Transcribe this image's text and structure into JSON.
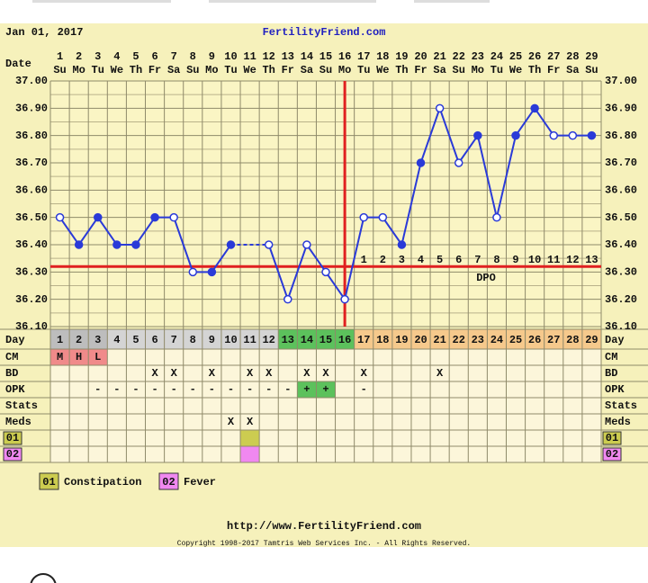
{
  "chart_data": {
    "type": "line",
    "date": "Jan 01, 2017",
    "site": "FertilityFriend.com",
    "date_label": "Date",
    "x": [
      1,
      2,
      3,
      4,
      5,
      6,
      7,
      8,
      9,
      10,
      11,
      12,
      13,
      14,
      15,
      16,
      17,
      18,
      19,
      20,
      21,
      22,
      23,
      24,
      25,
      26,
      27,
      28,
      29
    ],
    "weekdays": [
      "Su",
      "Mo",
      "Tu",
      "We",
      "Th",
      "Fr",
      "Sa",
      "Su",
      "Mo",
      "Tu",
      "We",
      "Th",
      "Fr",
      "Sa",
      "Su",
      "Mo",
      "Tu",
      "We",
      "Th",
      "Fr",
      "Sa",
      "Su",
      "Mo",
      "Tu",
      "We",
      "Th",
      "Fr",
      "Sa",
      "Su"
    ],
    "series": [
      {
        "color": "#2a3ad8",
        "values": [
          36.5,
          36.4,
          36.5,
          36.4,
          36.4,
          36.5,
          36.5,
          36.3,
          36.3,
          36.4,
          null,
          36.4,
          36.2,
          36.4,
          36.3,
          36.2,
          36.5,
          36.5,
          36.4,
          36.7,
          36.9,
          36.7,
          36.8,
          36.5,
          36.8,
          36.9,
          36.8,
          36.8,
          36.8
        ],
        "filled": [
          false,
          true,
          true,
          true,
          true,
          true,
          false,
          false,
          true,
          true,
          null,
          false,
          false,
          false,
          false,
          false,
          false,
          false,
          true,
          true,
          false,
          false,
          true,
          false,
          true,
          true,
          false,
          false,
          true
        ],
        "gap_style": "dashed"
      }
    ],
    "ylim": [
      36.1,
      37.0
    ],
    "yticks": [
      {
        "value": 36.1,
        "label": "36.10"
      },
      {
        "value": 36.2,
        "label": "36.20"
      },
      {
        "value": 36.3,
        "label": "36.30"
      },
      {
        "value": 36.4,
        "label": "36.40"
      },
      {
        "value": 36.5,
        "label": "36.50"
      },
      {
        "value": 36.6,
        "label": "36.60"
      },
      {
        "value": 36.7,
        "label": "36.70"
      },
      {
        "value": 36.8,
        "label": "36.80"
      },
      {
        "value": 36.9,
        "label": "36.90"
      },
      {
        "value": 37.0,
        "label": "37.00"
      }
    ],
    "minor_yticks": [
      36.15,
      36.25,
      36.35,
      36.45,
      36.55,
      36.65,
      36.75,
      36.85,
      36.95
    ],
    "grid": true,
    "coverline": 36.32,
    "coverline_color": "#e02020",
    "ovulation_day": 16,
    "dpo": [
      null,
      null,
      null,
      null,
      null,
      null,
      null,
      null,
      null,
      null,
      null,
      null,
      null,
      null,
      null,
      null,
      1,
      2,
      3,
      4,
      5,
      6,
      7,
      8,
      9,
      10,
      11,
      12,
      13
    ],
    "dpo_label": "DPO",
    "day_label": "Day",
    "phases": [
      {
        "days": [
          1,
          3
        ],
        "color": "#bdbdbd"
      },
      {
        "days": [
          4,
          12
        ],
        "color": "#d4d4d4"
      },
      {
        "days": [
          13,
          16
        ],
        "color": "#5cc15c"
      },
      {
        "days": [
          17,
          29
        ],
        "color": "#f6c98c"
      }
    ],
    "rows": [
      {
        "label": "CM",
        "color": "#f08a8a",
        "highlight_days": [
          1,
          2,
          3
        ],
        "values": [
          "M",
          "H",
          "L",
          null,
          null,
          null,
          null,
          null,
          null,
          null,
          null,
          null,
          null,
          null,
          null,
          null,
          null,
          null,
          null,
          null,
          null,
          null,
          null,
          null,
          null,
          null,
          null,
          null,
          null
        ]
      },
      {
        "label": "BD",
        "values": [
          null,
          null,
          null,
          null,
          null,
          "X",
          "X",
          null,
          "X",
          null,
          "X",
          "X",
          null,
          "X",
          "X",
          null,
          "X",
          null,
          null,
          null,
          "X",
          null,
          null,
          null,
          null,
          null,
          null,
          null,
          null
        ]
      },
      {
        "label": "OPK",
        "color": "#5cc15c",
        "highlight_days": [
          14,
          15
        ],
        "values": [
          null,
          null,
          "-",
          "-",
          "-",
          "-",
          "-",
          "-",
          "-",
          "-",
          "-",
          "-",
          "-",
          "+",
          "+",
          null,
          "-",
          null,
          null,
          null,
          null,
          null,
          null,
          null,
          null,
          null,
          null,
          null,
          null
        ]
      },
      {
        "label": "Stats",
        "values": [
          null,
          null,
          null,
          null,
          null,
          null,
          null,
          null,
          null,
          null,
          null,
          null,
          null,
          null,
          null,
          null,
          null,
          null,
          null,
          null,
          null,
          null,
          null,
          null,
          null,
          null,
          null,
          null,
          null
        ]
      },
      {
        "label": "Meds",
        "values": [
          null,
          null,
          null,
          null,
          null,
          null,
          null,
          null,
          null,
          "X",
          "X",
          null,
          null,
          null,
          null,
          null,
          null,
          null,
          null,
          null,
          null,
          null,
          null,
          null,
          null,
          null,
          null,
          null,
          null
        ]
      }
    ],
    "notes": [
      {
        "code": "01",
        "name": "Constipation",
        "color": "#cccc50",
        "days": [
          11
        ]
      },
      {
        "code": "02",
        "name": "Fever",
        "color": "#f088f0",
        "days": [
          11
        ]
      }
    ],
    "footer_url": "http://www.FertilityFriend.com",
    "copyright": "Copyright 1998-2017 Tamtris Web Services Inc. - All Rights Reserved."
  }
}
